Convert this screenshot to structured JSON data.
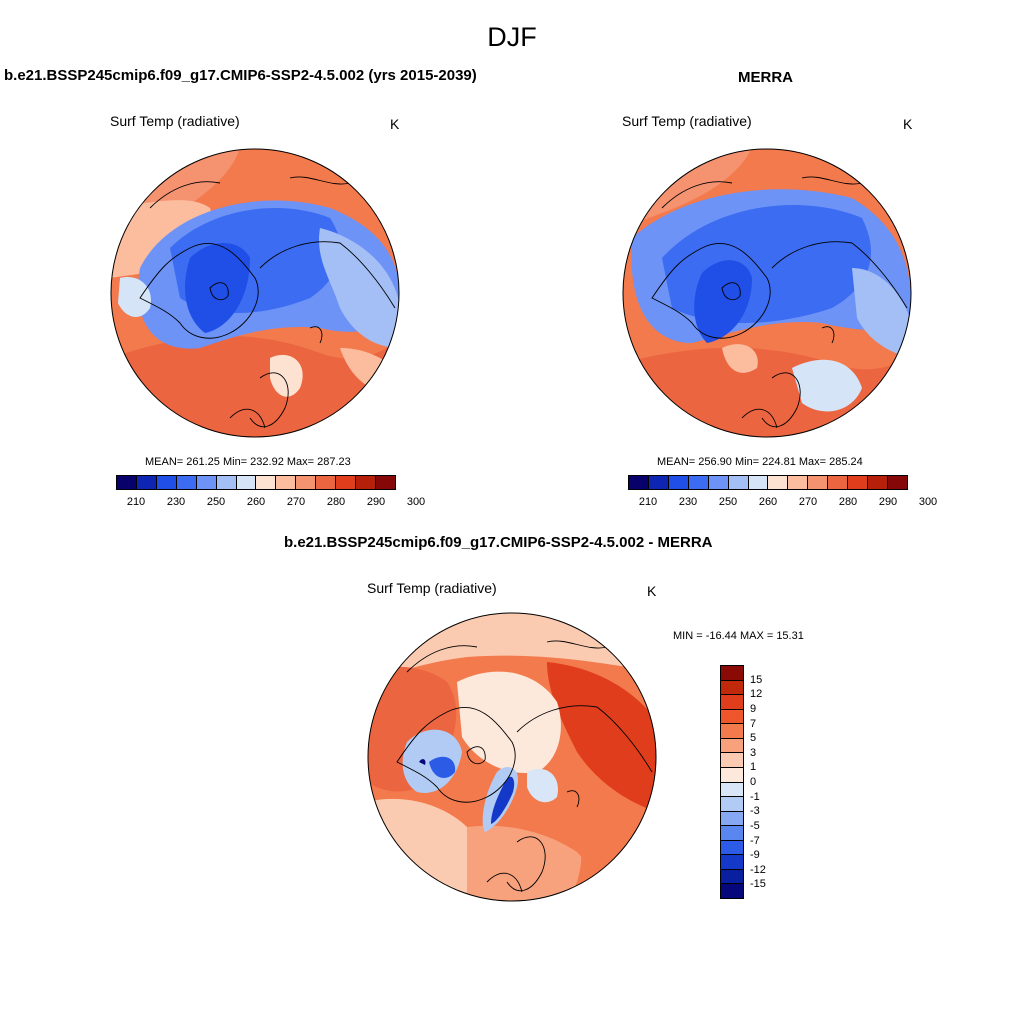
{
  "title": "DJF",
  "panels": [
    {
      "title": "b.e21.BSSP245cmip6.f09_g17.CMIP6-SSP2-4.5.002 (yrs 2015-2039)",
      "variable": "Surf Temp (radiative)",
      "units": "K",
      "stats": "MEAN= 261.25  Min= 232.92  Max= 287.23"
    },
    {
      "title": "MERRA",
      "variable": "Surf Temp (radiative)",
      "units": "K",
      "stats": "MEAN= 256.90  Min= 224.81  Max= 285.24"
    },
    {
      "title": "b.e21.BSSP245cmip6.f09_g17.CMIP6-SSP2-4.5.002 - MERRA",
      "variable": "Surf Temp (radiative)",
      "units": "K",
      "stats": "MIN = -16.44 MAX =  15.31"
    }
  ],
  "colorbar_abs": {
    "ticks": [
      "210",
      "230",
      "250",
      "260",
      "270",
      "280",
      "290",
      "300"
    ],
    "colors": [
      "#08006b",
      "#0e24b3",
      "#1f4fe6",
      "#3b6cf2",
      "#6d93f6",
      "#a3bff5",
      "#d5e4f7",
      "#fde2d2",
      "#fbbd9e",
      "#f59270",
      "#ec6541",
      "#e03d1c",
      "#b61f0a",
      "#850708"
    ]
  },
  "colorbar_diff": {
    "ticks": [
      "15",
      "12",
      "9",
      "7",
      "5",
      "3",
      "1",
      "0",
      "-1",
      "-3",
      "-5",
      "-7",
      "-9",
      "-12",
      "-15"
    ],
    "colors": [
      "#8a0a06",
      "#c02a0a",
      "#e03d1c",
      "#f0562c",
      "#f37a4c",
      "#f7a27d",
      "#fbcbb1",
      "#fde8dc",
      "#d8e6f8",
      "#b2cbf4",
      "#86a8f2",
      "#5a86ef",
      "#2c5ce6",
      "#1438c8",
      "#0a1ea0",
      "#06077a"
    ]
  }
}
